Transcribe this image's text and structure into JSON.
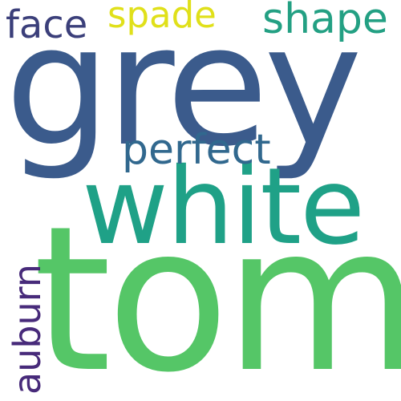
{
  "words": {
    "grey": {
      "text": "grey",
      "color": "#3b5b8c"
    },
    "tom": {
      "text": "tom",
      "color": "#55c667"
    },
    "white": {
      "text": "white",
      "color": "#1fa187"
    },
    "perfect": {
      "text": "perfect",
      "color": "#31688e"
    },
    "face": {
      "text": "face",
      "color": "#3b3f7a"
    },
    "spade": {
      "text": "spade",
      "color": "#e0e01a"
    },
    "shape": {
      "text": "shape",
      "color": "#23a083"
    },
    "auburn": {
      "text": "auburn",
      "color": "#472a7a"
    }
  }
}
